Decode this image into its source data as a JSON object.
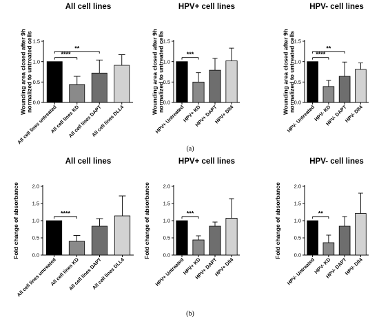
{
  "figure": {
    "panel_labels": [
      "(a)",
      "(b)"
    ],
    "bar_colors": [
      "#000000",
      "#8a8a8a",
      "#6e6e6e",
      "#d2d2d2"
    ]
  },
  "chart_data": [
    {
      "type": "bar",
      "title": "All cell lines",
      "ylabel": "Wounding area closed after 9h normalized to untreated cells",
      "ylim": [
        0,
        1.5
      ],
      "yticks": [
        "0.0",
        "0.5",
        "1.0",
        "1.5"
      ],
      "categories": [
        "All cell lines untreated",
        "All cell lines KD",
        "All cell lines DAPT",
        "All cell lines DLL4"
      ],
      "values": [
        1.0,
        0.44,
        0.72,
        0.91
      ],
      "errors": [
        0.0,
        0.2,
        0.32,
        0.26
      ],
      "significance": [
        {
          "from": 0,
          "to": 1,
          "label": "****"
        },
        {
          "from": 0,
          "to": 2,
          "label": "**"
        }
      ]
    },
    {
      "type": "bar",
      "title": "HPV+ cell lines",
      "ylabel": "Wounding area closed after 9h normalized to untreated cells",
      "ylim": [
        0,
        1.5
      ],
      "yticks": [
        "0.0",
        "0.5",
        "1.0",
        "1.5"
      ],
      "categories": [
        "HPV+ Untreated",
        "HPV+ KD",
        "HPV+ DAPT",
        "HPV+ Dll4"
      ],
      "values": [
        1.0,
        0.5,
        0.79,
        1.02
      ],
      "errors": [
        0.0,
        0.23,
        0.29,
        0.31
      ],
      "significance": [
        {
          "from": 0,
          "to": 1,
          "label": "***"
        }
      ]
    },
    {
      "type": "bar",
      "title": "HPV- cell lines",
      "ylabel": "Wounding area closed after 9h normalized to untreated cells",
      "ylim": [
        0,
        1.5
      ],
      "yticks": [
        "0.0",
        "0.5",
        "1.0",
        "1.5"
      ],
      "categories": [
        "HPV- Untreated",
        "HPV- KD",
        "HPV- DAPT",
        "HPV- Dll4"
      ],
      "values": [
        1.0,
        0.39,
        0.64,
        0.81
      ],
      "errors": [
        0.0,
        0.15,
        0.35,
        0.16
      ],
      "significance": [
        {
          "from": 0,
          "to": 1,
          "label": "****"
        },
        {
          "from": 0,
          "to": 2,
          "label": "**"
        }
      ]
    },
    {
      "type": "bar",
      "title": "All cell lines",
      "ylabel": "Fold change of absorbance",
      "ylim": [
        0,
        2.0
      ],
      "yticks": [
        "0.0",
        "0.5",
        "1.0",
        "1.5",
        "2.0"
      ],
      "categories": [
        "All cell lines untreated",
        "All cell lines KD",
        "All cell lines DAPT",
        "All cell lines DLL4"
      ],
      "values": [
        1.0,
        0.4,
        0.84,
        1.14
      ],
      "errors": [
        0.0,
        0.17,
        0.22,
        0.58
      ],
      "significance": [
        {
          "from": 0,
          "to": 1,
          "label": "****"
        }
      ]
    },
    {
      "type": "bar",
      "title": "HPV+ cell lines",
      "ylabel": "Fold change of absorbance",
      "ylim": [
        0,
        2.0
      ],
      "yticks": [
        "0.0",
        "0.5",
        "1.0",
        "1.5",
        "2.0"
      ],
      "categories": [
        "HPV+ Untreated",
        "HPV+ KD",
        "HPV+ DAPT",
        "HPV+ Dll4"
      ],
      "values": [
        1.0,
        0.44,
        0.84,
        1.07
      ],
      "errors": [
        0.0,
        0.12,
        0.12,
        0.57
      ],
      "significance": [
        {
          "from": 0,
          "to": 1,
          "label": "***"
        }
      ]
    },
    {
      "type": "bar",
      "title": "HPV- cell lines",
      "ylabel": "Fold change of absorbance",
      "ylim": [
        0,
        2.0
      ],
      "yticks": [
        "0.0",
        "0.5",
        "1.0",
        "1.5",
        "2.0"
      ],
      "categories": [
        "HPV- Untreated",
        "HPV- KD",
        "HPV- DAPT",
        "HPV- Dll4"
      ],
      "values": [
        1.0,
        0.36,
        0.84,
        1.21
      ],
      "errors": [
        0.0,
        0.22,
        0.28,
        0.59
      ],
      "significance": [
        {
          "from": 0,
          "to": 1,
          "label": "**"
        }
      ]
    }
  ]
}
